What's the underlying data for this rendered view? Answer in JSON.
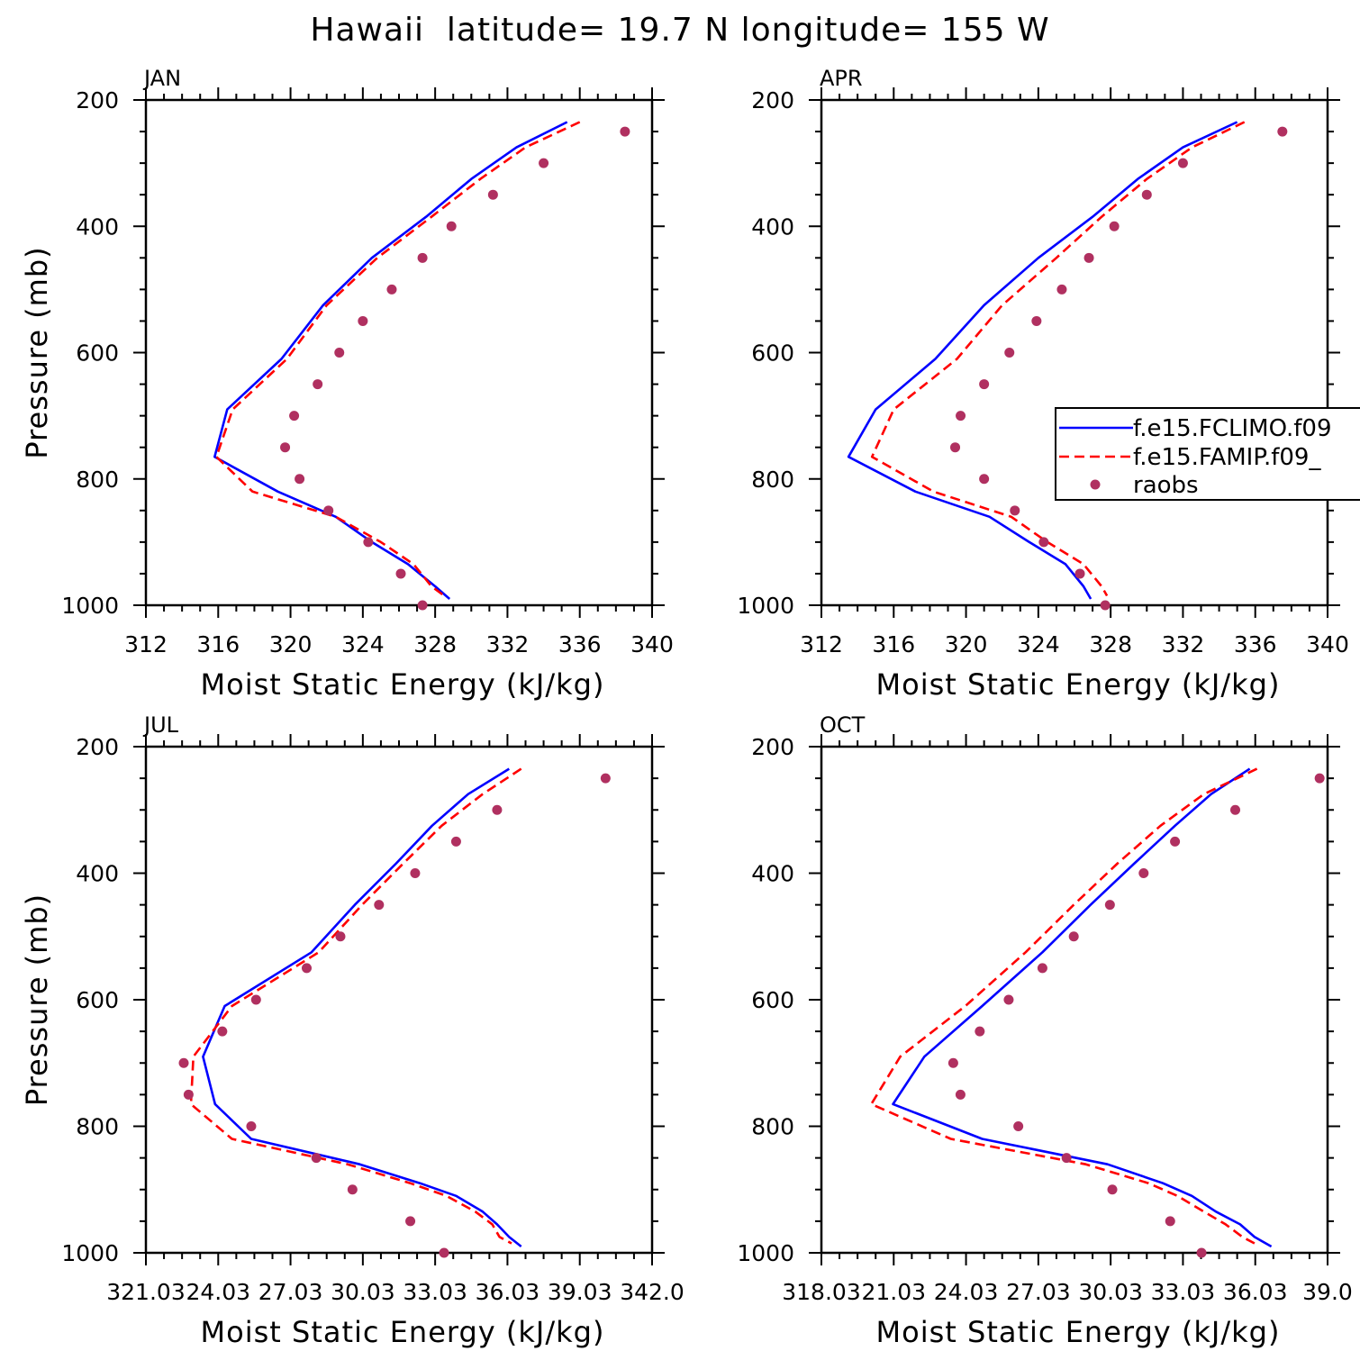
{
  "figure": {
    "title": "Hawaii  latitude= 19.7 N longitude= 155 W"
  },
  "legend": {
    "entries": [
      "f.e15.FCLIMO.f09",
      "f.e15.FAMIP.f09_",
      "raobs"
    ]
  },
  "colors": {
    "model_climo": "#0000ff",
    "model_amip": "#ff0000",
    "raobs": "#b03060",
    "axes": "#000000"
  },
  "chart_data": [
    {
      "type": "line",
      "panel": "JAN",
      "xlabel": "Moist Static Energy (kJ/kg)",
      "ylabel": "Pressure (mb)",
      "xlim": [
        312,
        340
      ],
      "ylim": [
        1000,
        200
      ],
      "x_ticks": [
        "312",
        "316",
        "320",
        "324",
        "328",
        "332",
        "336",
        "340"
      ],
      "y_ticks": [
        "200",
        "400",
        "600",
        "800",
        "1000"
      ],
      "series": [
        {
          "name": "f.e15.FCLIMO.f09",
          "style": "solid",
          "pressure": [
            235,
            275,
            325,
            385,
            450,
            525,
            610,
            690,
            765,
            820,
            860,
            900,
            935,
            970,
            990
          ],
          "values": [
            335.3,
            332.5,
            330,
            327.5,
            324.5,
            321.8,
            319.5,
            316.5,
            315.8,
            319.3,
            322.5,
            324.5,
            326.5,
            328,
            328.8
          ]
        },
        {
          "name": "f.e15.FAMIP.f09_",
          "style": "dashed",
          "pressure": [
            235,
            275,
            325,
            385,
            450,
            525,
            610,
            690,
            765,
            820,
            860,
            900,
            935,
            970,
            985
          ],
          "values": [
            336,
            333,
            330.5,
            327.8,
            324.8,
            322,
            319.8,
            316.8,
            315.9,
            317.9,
            322.5,
            325,
            326.8,
            327.8,
            328.5
          ]
        },
        {
          "name": "raobs",
          "style": "markers",
          "pressure": [
            250,
            300,
            350,
            400,
            450,
            500,
            550,
            600,
            650,
            700,
            750,
            800,
            850,
            900,
            950,
            1000
          ],
          "values": [
            338.5,
            334,
            331.2,
            328.9,
            327.3,
            325.6,
            324,
            322.7,
            321.5,
            320.2,
            319.7,
            320.5,
            322.1,
            324.3,
            326.1,
            327.3
          ]
        }
      ]
    },
    {
      "type": "line",
      "panel": "APR",
      "xlabel": "Moist Static Energy (kJ/kg)",
      "ylabel": "",
      "xlim": [
        312,
        340
      ],
      "ylim": [
        1000,
        200
      ],
      "x_ticks": [
        "312",
        "316",
        "320",
        "324",
        "328",
        "332",
        "336",
        "340"
      ],
      "y_ticks": [
        "200",
        "400",
        "600",
        "800",
        "1000"
      ],
      "series": [
        {
          "name": "f.e15.FCLIMO.f09",
          "style": "solid",
          "pressure": [
            235,
            275,
            325,
            385,
            450,
            525,
            610,
            690,
            765,
            820,
            860,
            900,
            935,
            970,
            990
          ],
          "values": [
            335,
            332,
            329.5,
            327,
            324,
            321,
            318.3,
            315,
            313.5,
            317.2,
            321.3,
            323.5,
            325.5,
            326.5,
            326.9
          ]
        },
        {
          "name": "f.e15.FAMIP.f09_",
          "style": "dashed",
          "pressure": [
            235,
            275,
            325,
            385,
            450,
            525,
            610,
            690,
            765,
            820,
            860,
            900,
            935,
            970,
            985
          ],
          "values": [
            335.4,
            332.5,
            330,
            327.5,
            325,
            322,
            319.5,
            316,
            314.8,
            318.2,
            322.5,
            324.5,
            326.5,
            327.5,
            327.8
          ]
        },
        {
          "name": "raobs",
          "style": "markers",
          "pressure": [
            250,
            300,
            350,
            400,
            450,
            500,
            550,
            600,
            650,
            700,
            750,
            800,
            850,
            900,
            950,
            1000
          ],
          "values": [
            337.5,
            332,
            330,
            328.2,
            326.8,
            325.3,
            323.9,
            322.4,
            321,
            319.7,
            319.4,
            321,
            322.7,
            324.3,
            326.3,
            327.7
          ]
        }
      ]
    },
    {
      "type": "line",
      "panel": "JUL",
      "xlabel": "Moist Static Energy (kJ/kg)",
      "ylabel": "Pressure (mb)",
      "xlim": [
        321.03,
        342.03
      ],
      "ylim": [
        1000,
        200
      ],
      "x_ticks": [
        "321.03",
        "24.03",
        "27.03",
        "30.03",
        "33.03",
        "36.03",
        "39.03",
        "342.0"
      ],
      "y_ticks": [
        "200",
        "400",
        "600",
        "800",
        "1000"
      ],
      "series": [
        {
          "name": "f.e15.FCLIMO.f09",
          "style": "solid",
          "pressure": [
            235,
            275,
            325,
            385,
            450,
            525,
            610,
            690,
            765,
            820,
            860,
            890,
            910,
            935,
            955,
            975,
            990
          ],
          "values": [
            336.1,
            334.4,
            332.9,
            331.4,
            329.7,
            327.9,
            324.3,
            323.4,
            323.9,
            325.4,
            329.9,
            332.4,
            333.9,
            335,
            335.6,
            336.1,
            336.6
          ]
        },
        {
          "name": "f.e15.FAMIP.f09_",
          "style": "dashed",
          "pressure": [
            235,
            275,
            325,
            385,
            450,
            525,
            610,
            690,
            765,
            820,
            860,
            890,
            910,
            935,
            955,
            975,
            985
          ],
          "values": [
            336.6,
            335,
            333.3,
            331.7,
            330,
            328.2,
            324.6,
            323,
            322.9,
            324.6,
            329.4,
            332,
            333.5,
            334.7,
            335.4,
            335.7,
            336.2
          ]
        },
        {
          "name": "raobs",
          "style": "markers",
          "pressure": [
            250,
            300,
            350,
            400,
            450,
            500,
            550,
            600,
            650,
            700,
            750,
            800,
            850,
            900,
            950,
            1000
          ],
          "values": [
            340.1,
            335.6,
            333.9,
            332.2,
            330.7,
            329.1,
            327.7,
            325.6,
            324.2,
            322.6,
            322.8,
            325.4,
            328.1,
            329.6,
            332,
            333.4
          ]
        }
      ]
    },
    {
      "type": "line",
      "panel": "OCT",
      "xlabel": "Moist Static Energy (kJ/kg)",
      "ylabel": "",
      "xlim": [
        318.03,
        339.03
      ],
      "ylim": [
        1000,
        200
      ],
      "x_ticks": [
        "318.03",
        "21.03",
        "24.03",
        "27.03",
        "30.03",
        "33.03",
        "36.03",
        "39.0"
      ],
      "y_ticks": [
        "200",
        "400",
        "600",
        "800",
        "1000"
      ],
      "series": [
        {
          "name": "f.e15.FCLIMO.f09",
          "style": "solid",
          "pressure": [
            235,
            275,
            325,
            385,
            450,
            525,
            610,
            690,
            765,
            820,
            860,
            890,
            910,
            935,
            955,
            975,
            990
          ],
          "values": [
            335.8,
            334.2,
            332.7,
            331,
            329.2,
            327.2,
            324.7,
            322.3,
            321,
            324.7,
            329.9,
            332.2,
            333.4,
            334.4,
            335.4,
            336,
            336.7
          ]
        },
        {
          "name": "f.e15.FAMIP.f09_",
          "style": "dashed",
          "pressure": [
            235,
            275,
            325,
            385,
            450,
            525,
            610,
            690,
            765,
            820,
            860,
            890,
            910,
            935,
            955,
            975,
            985
          ],
          "values": [
            336.1,
            333.9,
            332.1,
            330.3,
            328.5,
            326.5,
            324,
            321.3,
            320.1,
            323.4,
            329,
            331.6,
            332.8,
            333.9,
            334.8,
            335.5,
            336
          ]
        },
        {
          "name": "raobs",
          "style": "markers",
          "pressure": [
            250,
            300,
            350,
            400,
            450,
            500,
            550,
            600,
            650,
            700,
            750,
            800,
            850,
            900,
            950,
            1000
          ],
          "values": [
            338.7,
            335.2,
            332.7,
            331.4,
            330,
            328.5,
            327.2,
            325.8,
            324.6,
            323.5,
            323.8,
            326.2,
            328.2,
            330.1,
            332.5,
            333.8
          ]
        }
      ]
    }
  ]
}
